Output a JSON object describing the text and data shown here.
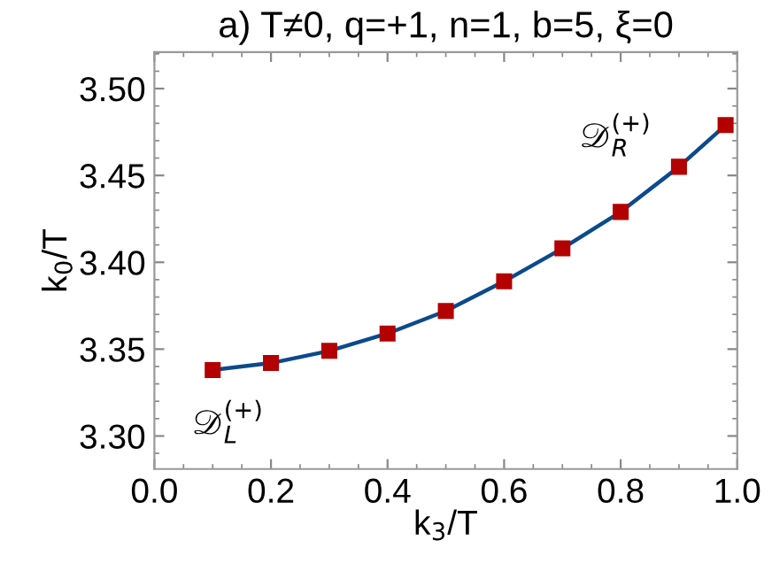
{
  "chart_data": {
    "type": "line",
    "title": "a) T≠0, q=+1, n=1, b=5, ξ=0",
    "xlabel": "k$_{3}$/T",
    "ylabel": "k$_{0}$/T",
    "x": [
      0.1,
      0.2,
      0.3,
      0.4,
      0.5,
      0.6,
      0.7,
      0.8,
      0.9,
      0.98
    ],
    "series": [
      {
        "color": "#0b4a8b",
        "values": [
          3.338,
          3.342,
          3.349,
          3.359,
          3.372,
          3.389,
          3.408,
          3.429,
          3.455,
          3.479
        ]
      }
    ],
    "marker": "square",
    "line_style": "solid",
    "grid": false,
    "legend": false,
    "xlim": [
      0,
      1
    ],
    "ylim": [
      3.281,
      3.521
    ],
    "xticks": [
      {
        "value": 0,
        "label": "0.0"
      },
      {
        "value": 0.2,
        "label": "0.2"
      },
      {
        "value": 0.4,
        "label": "0.4"
      },
      {
        "value": 0.6,
        "label": "0.6"
      },
      {
        "value": 0.8,
        "label": "0.8"
      },
      {
        "value": 1,
        "label": "1.0"
      }
    ],
    "yticks": [
      {
        "value": 3.3,
        "label": "3.30"
      },
      {
        "value": 3.35,
        "label": "3.35"
      },
      {
        "value": 3.4,
        "label": "3.40"
      },
      {
        "value": 3.45,
        "label": "3.45"
      },
      {
        "value": 3.5,
        "label": "3.50"
      }
    ],
    "annotations": [
      {
        "text": "𝒟$^{(+)}$$_{L}$",
        "x": 0.1,
        "y": 3.338
      },
      {
        "text": "𝒟$^{(+)}$$_{R}$",
        "x": 0.9,
        "y": 3.455
      }
    ]
  }
}
